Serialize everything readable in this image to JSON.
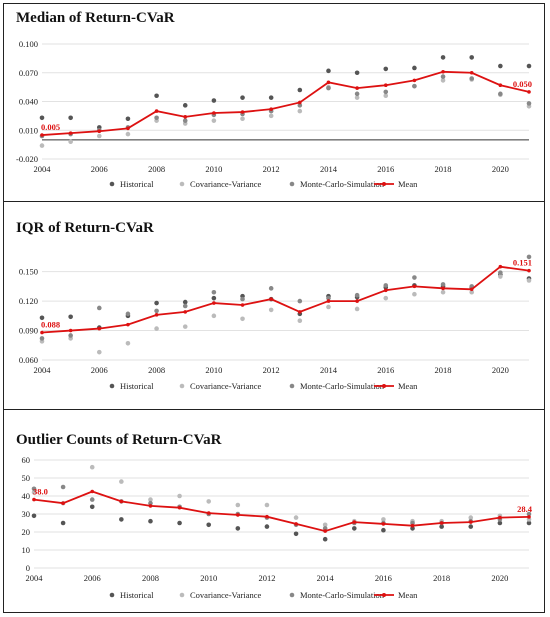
{
  "colors": {
    "historical": "#555555",
    "covariance": "#bbbbbb",
    "montecarlo": "#888888",
    "mean": "#dd1111"
  },
  "chart_data": [
    {
      "type": "scatter",
      "title": "Median of Return-CVaR",
      "x": [
        2004,
        2005,
        2006,
        2007,
        2008,
        2009,
        2010,
        2011,
        2012,
        2013,
        2014,
        2015,
        2016,
        2017,
        2018,
        2019,
        2020,
        2021
      ],
      "ylim": [
        -0.02,
        0.1
      ],
      "yticks": [
        -0.02,
        0.01,
        0.04,
        0.07,
        0.1
      ],
      "ytick_labels": [
        "-0.020",
        "0.010",
        "0.040",
        "0.070",
        "0.100"
      ],
      "xticks": [
        2004,
        2006,
        2008,
        2010,
        2012,
        2014,
        2016,
        2018,
        2020
      ],
      "zero_line": true,
      "series": [
        {
          "name": "Historical",
          "style": "dot",
          "values": [
            0.023,
            0.023,
            0.013,
            0.022,
            0.046,
            0.036,
            0.041,
            0.044,
            0.044,
            0.052,
            0.072,
            0.07,
            0.074,
            0.075,
            0.086,
            0.086,
            0.077,
            0.077
          ]
        },
        {
          "name": "Covariance-Variance",
          "style": "dot",
          "values": [
            -0.006,
            -0.002,
            0.004,
            0.006,
            0.02,
            0.017,
            0.02,
            0.022,
            0.025,
            0.03,
            0.055,
            0.044,
            0.046,
            0.056,
            0.062,
            0.063,
            0.047,
            0.035
          ]
        },
        {
          "name": "Monte-Carlo-Simulation",
          "style": "dot",
          "values": [
            0.004,
            0.006,
            0.01,
            0.013,
            0.023,
            0.02,
            0.026,
            0.027,
            0.03,
            0.036,
            0.054,
            0.048,
            0.05,
            0.056,
            0.066,
            0.064,
            0.048,
            0.038
          ]
        },
        {
          "name": "Mean",
          "style": "line",
          "values": [
            0.005,
            0.007,
            0.009,
            0.012,
            0.03,
            0.024,
            0.028,
            0.029,
            0.032,
            0.039,
            0.06,
            0.054,
            0.057,
            0.062,
            0.071,
            0.07,
            0.057,
            0.05
          ]
        }
      ],
      "annotations": [
        {
          "x": 2004,
          "text": "0.005",
          "anchor": "start"
        },
        {
          "x": 2021,
          "text": "0.050",
          "anchor": "end"
        }
      ],
      "legend": "bottom"
    },
    {
      "type": "scatter",
      "title": "IQR of Return-CVaR",
      "x": [
        2004,
        2005,
        2006,
        2007,
        2008,
        2009,
        2010,
        2011,
        2012,
        2013,
        2014,
        2015,
        2016,
        2017,
        2018,
        2019,
        2020,
        2021
      ],
      "ylim": [
        0.06,
        0.17
      ],
      "yticks": [
        0.06,
        0.09,
        0.12,
        0.15
      ],
      "ytick_labels": [
        "0.060",
        "0.090",
        "0.120",
        "0.150"
      ],
      "xticks": [
        2004,
        2006,
        2008,
        2010,
        2012,
        2014,
        2016,
        2018,
        2020
      ],
      "zero_line": false,
      "series": [
        {
          "name": "Historical",
          "style": "dot",
          "values": [
            0.103,
            0.104,
            0.093,
            0.105,
            0.118,
            0.119,
            0.123,
            0.125,
            0.122,
            0.107,
            0.125,
            0.124,
            0.134,
            0.136,
            0.135,
            0.134,
            0.147,
            0.143
          ]
        },
        {
          "name": "Covariance-Variance",
          "style": "dot",
          "values": [
            0.079,
            0.082,
            0.068,
            0.077,
            0.092,
            0.094,
            0.105,
            0.102,
            0.111,
            0.1,
            0.114,
            0.112,
            0.123,
            0.127,
            0.129,
            0.129,
            0.145,
            0.141
          ]
        },
        {
          "name": "Monte-Carlo-Simulation",
          "style": "dot",
          "values": [
            0.082,
            0.085,
            0.113,
            0.107,
            0.11,
            0.115,
            0.129,
            0.122,
            0.133,
            0.12,
            0.123,
            0.126,
            0.136,
            0.144,
            0.137,
            0.135,
            0.149,
            0.165
          ]
        },
        {
          "name": "Mean",
          "style": "line",
          "values": [
            0.088,
            0.09,
            0.092,
            0.096,
            0.106,
            0.109,
            0.118,
            0.116,
            0.122,
            0.109,
            0.12,
            0.12,
            0.131,
            0.135,
            0.133,
            0.132,
            0.155,
            0.151
          ]
        }
      ],
      "annotations": [
        {
          "x": 2004,
          "text": "0.088",
          "anchor": "start"
        },
        {
          "x": 2021,
          "text": "0.151",
          "anchor": "end"
        }
      ],
      "legend": "bottom"
    },
    {
      "type": "scatter",
      "title": "Outlier Counts of Return-CVaR",
      "x": [
        2004,
        2005,
        2006,
        2007,
        2008,
        2009,
        2010,
        2011,
        2012,
        2013,
        2014,
        2015,
        2016,
        2017,
        2018,
        2019,
        2020,
        2021
      ],
      "ylim": [
        0,
        60
      ],
      "yticks": [
        0,
        10,
        20,
        30,
        40,
        50,
        60
      ],
      "ytick_labels": [
        "0",
        "10",
        "20",
        "30",
        "40",
        "50",
        "60"
      ],
      "xticks": [
        2004,
        2006,
        2008,
        2010,
        2012,
        2014,
        2016,
        2018,
        2020
      ],
      "zero_line": false,
      "series": [
        {
          "name": "Historical",
          "style": "dot",
          "values": [
            29,
            25,
            34,
            27,
            26,
            25,
            24,
            22,
            23,
            19,
            16,
            22,
            21,
            22,
            23,
            23,
            25,
            25
          ]
        },
        {
          "name": "Covariance-Variance",
          "style": "dot",
          "values": [
            42,
            36,
            56,
            48,
            38,
            40,
            37,
            35,
            35,
            28,
            24,
            26,
            27,
            26,
            26,
            28,
            29,
            27
          ]
        },
        {
          "name": "Monte-Carlo-Simulation",
          "style": "dot",
          "values": [
            44,
            45,
            38,
            37,
            36,
            34,
            30,
            30,
            28,
            24,
            22,
            25,
            25,
            25,
            25,
            26,
            27,
            30
          ]
        },
        {
          "name": "Mean",
          "style": "line",
          "values": [
            38,
            36,
            42.5,
            37,
            34.5,
            33.5,
            30.5,
            29.5,
            28.5,
            24.5,
            20.5,
            25.5,
            24.5,
            23.5,
            25,
            25.5,
            28,
            28.4
          ]
        }
      ],
      "annotations": [
        {
          "x": 2004,
          "text": "38.0",
          "anchor": "start"
        },
        {
          "x": 2021,
          "text": "28.4",
          "anchor": "end"
        }
      ],
      "legend": "bottom"
    }
  ]
}
